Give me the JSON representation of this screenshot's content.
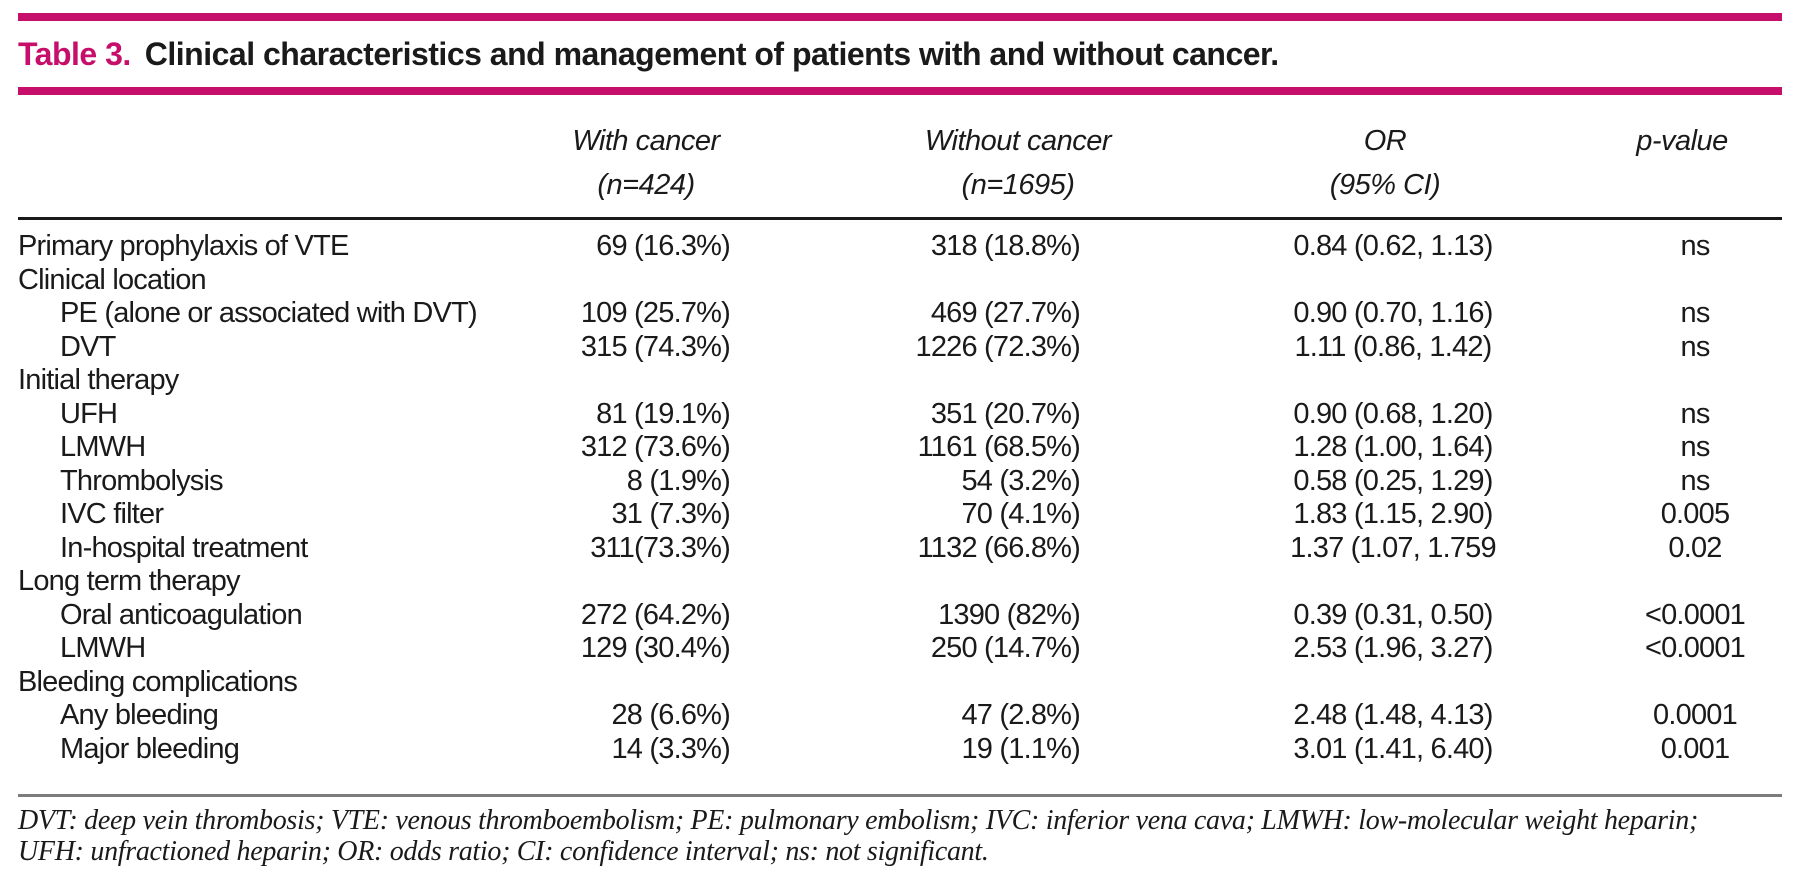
{
  "title": {
    "label": "Table 3.",
    "text": "Clinical characteristics and management of patients with and without cancer."
  },
  "colors": {
    "accent_pink": "#c60f6b",
    "header_rule_black": "#1a1a1a",
    "footnote_rule_gray": "#7c7c7c",
    "text": "#1a1a1a"
  },
  "columns": [
    {
      "line1": "With cancer",
      "line2": "(n=424)"
    },
    {
      "line1": "Without cancer",
      "line2": "(n=1695)"
    },
    {
      "line1": "OR",
      "line2": "(95% CI)"
    },
    {
      "line1": "p-value",
      "line2": ""
    }
  ],
  "rows": [
    {
      "label": "Primary prophylaxis of VTE",
      "indent": false,
      "values": [
        "69 (16.3%)",
        "318 (18.8%)",
        "0.84 (0.62, 1.13)",
        "ns"
      ]
    },
    {
      "label": "Clinical location",
      "indent": false,
      "values": [
        "",
        "",
        "",
        ""
      ]
    },
    {
      "label": "PE (alone or associated with DVT)",
      "indent": true,
      "values": [
        "109 (25.7%)",
        "469 (27.7%)",
        "0.90 (0.70, 1.16)",
        "ns"
      ]
    },
    {
      "label": "DVT",
      "indent": true,
      "values": [
        "315 (74.3%)",
        "1226 (72.3%)",
        "1.11 (0.86, 1.42)",
        "ns"
      ]
    },
    {
      "label": "Initial therapy",
      "indent": false,
      "values": [
        "",
        "",
        "",
        ""
      ]
    },
    {
      "label": "UFH",
      "indent": true,
      "values": [
        "81 (19.1%)",
        "351 (20.7%)",
        "0.90 (0.68, 1.20)",
        "ns"
      ]
    },
    {
      "label": "LMWH",
      "indent": true,
      "values": [
        "312 (73.6%)",
        "1161 (68.5%)",
        "1.28 (1.00, 1.64)",
        "ns"
      ]
    },
    {
      "label": "Thrombolysis",
      "indent": true,
      "values": [
        "8 (1.9%)",
        "54 (3.2%)",
        "0.58 (0.25, 1.29)",
        "ns"
      ]
    },
    {
      "label": "IVC filter",
      "indent": true,
      "values": [
        "31 (7.3%)",
        "70 (4.1%)",
        "1.83 (1.15, 2.90)",
        "0.005"
      ]
    },
    {
      "label": "In-hospital treatment",
      "indent": true,
      "values": [
        "311(73.3%)",
        "1132 (66.8%)",
        "1.37 (1.07, 1.759",
        "0.02"
      ]
    },
    {
      "label": "Long term therapy",
      "indent": false,
      "values": [
        "",
        "",
        "",
        ""
      ]
    },
    {
      "label": "Oral anticoagulation",
      "indent": true,
      "values": [
        "272 (64.2%)",
        "1390 (82%)",
        "0.39 (0.31, 0.50)",
        "<0.0001"
      ]
    },
    {
      "label": "LMWH",
      "indent": true,
      "values": [
        "129 (30.4%)",
        "250 (14.7%)",
        "2.53 (1.96, 3.27)",
        "<0.0001"
      ]
    },
    {
      "label": "Bleeding complications",
      "indent": false,
      "values": [
        "",
        "",
        "",
        ""
      ]
    },
    {
      "label": "Any bleeding",
      "indent": true,
      "values": [
        "28 (6.6%)",
        "47 (2.8%)",
        "2.48 (1.48, 4.13)",
        "0.0001"
      ]
    },
    {
      "label": "Major bleeding",
      "indent": true,
      "values": [
        "14 (3.3%)",
        "19 (1.1%)",
        "3.01 (1.41, 6.40)",
        "0.001"
      ]
    }
  ],
  "footnote": {
    "line1": "DVT: deep vein thrombosis; VTE: venous thromboembolism; PE: pulmonary embolism; IVC: inferior vena cava; LMWH: low-molecular weight heparin;",
    "line2": "UFH: unfractioned heparin; OR: odds ratio; CI: confidence interval; ns: not significant."
  }
}
